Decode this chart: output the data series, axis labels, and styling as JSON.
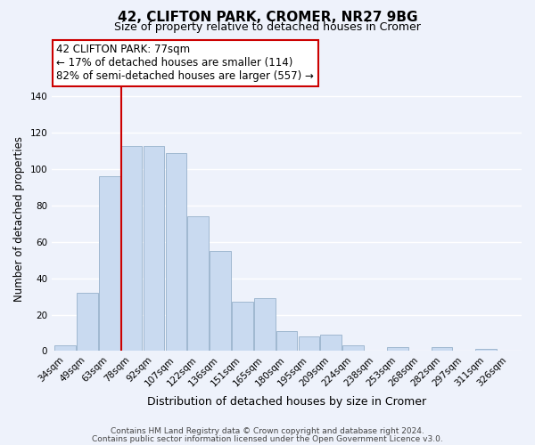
{
  "title": "42, CLIFTON PARK, CROMER, NR27 9BG",
  "subtitle": "Size of property relative to detached houses in Cromer",
  "xlabel": "Distribution of detached houses by size in Cromer",
  "ylabel": "Number of detached properties",
  "categories": [
    "34sqm",
    "49sqm",
    "63sqm",
    "78sqm",
    "92sqm",
    "107sqm",
    "122sqm",
    "136sqm",
    "151sqm",
    "165sqm",
    "180sqm",
    "195sqm",
    "209sqm",
    "224sqm",
    "238sqm",
    "253sqm",
    "268sqm",
    "282sqm",
    "297sqm",
    "311sqm",
    "326sqm"
  ],
  "values": [
    3,
    32,
    96,
    113,
    113,
    109,
    74,
    55,
    27,
    29,
    11,
    8,
    9,
    3,
    0,
    2,
    0,
    2,
    0,
    1,
    0
  ],
  "bar_color": "#c9daf0",
  "bar_edge_color": "#a0b8d0",
  "property_line_index": 3,
  "annotation_title": "42 CLIFTON PARK: 77sqm",
  "annotation_line1": "← 17% of detached houses are smaller (114)",
  "annotation_line2": "82% of semi-detached houses are larger (557) →",
  "annotation_box_color": "#ffffff",
  "annotation_border_color": "#cc0000",
  "vline_color": "#cc0000",
  "ylim": [
    0,
    145
  ],
  "yticks": [
    0,
    20,
    40,
    60,
    80,
    100,
    120,
    140
  ],
  "footer_line1": "Contains HM Land Registry data © Crown copyright and database right 2024.",
  "footer_line2": "Contains public sector information licensed under the Open Government Licence v3.0.",
  "bg_color": "#eef2fb",
  "grid_color": "#ffffff",
  "title_fontsize": 11,
  "subtitle_fontsize": 9,
  "tick_fontsize": 7.5,
  "ylabel_fontsize": 8.5,
  "xlabel_fontsize": 9
}
